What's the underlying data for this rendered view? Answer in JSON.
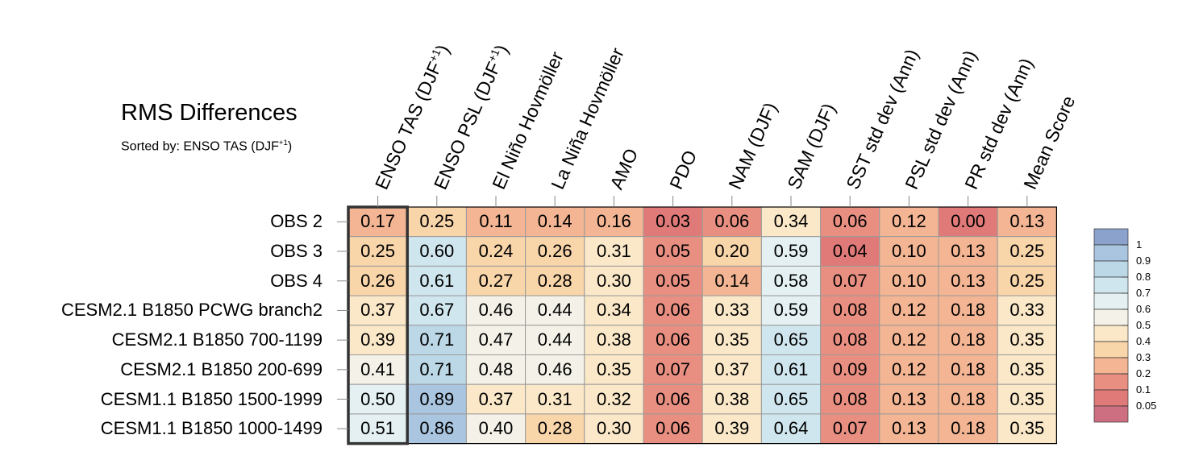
{
  "chart_data": {
    "type": "heatmap",
    "title": "RMS Differences",
    "subtitle": "Sorted by: ENSO TAS (DJF",
    "subtitle_sup": "+1",
    "subtitle_close": ")",
    "columns": [
      {
        "text": "ENSO TAS (DJF",
        "sup": "+1",
        "close": ")"
      },
      {
        "text": "ENSO PSL (DJF",
        "sup": "+1",
        "close": ")"
      },
      {
        "text": "El Niño Hovmöller"
      },
      {
        "text": "La Niña Hovmöller"
      },
      {
        "text": "AMO"
      },
      {
        "text": "PDO"
      },
      {
        "text": "NAM (DJF)"
      },
      {
        "text": "SAM (DJF)"
      },
      {
        "text": "SST std dev (Ann)"
      },
      {
        "text": "PSL std dev (Ann)"
      },
      {
        "text": "PR std dev (Ann)"
      },
      {
        "text": "Mean Score"
      }
    ],
    "rows": [
      "OBS 2",
      "OBS 3",
      "OBS 4",
      "CESM2.1 B1850 PCWG branch2",
      "CESM2.1 B1850 700-1199",
      "CESM2.1 B1850 200-699",
      "CESM1.1 B1850 1500-1999",
      "CESM1.1 B1850 1000-1499"
    ],
    "values": [
      [
        "0.17",
        "0.25",
        "0.11",
        "0.14",
        "0.16",
        "0.03",
        "0.06",
        "0.34",
        "0.06",
        "0.12",
        "0.00",
        "0.13"
      ],
      [
        "0.25",
        "0.60",
        "0.24",
        "0.26",
        "0.31",
        "0.05",
        "0.20",
        "0.59",
        "0.04",
        "0.10",
        "0.13",
        "0.25"
      ],
      [
        "0.26",
        "0.61",
        "0.27",
        "0.28",
        "0.30",
        "0.05",
        "0.14",
        "0.58",
        "0.07",
        "0.10",
        "0.13",
        "0.25"
      ],
      [
        "0.37",
        "0.67",
        "0.46",
        "0.44",
        "0.34",
        "0.06",
        "0.33",
        "0.59",
        "0.08",
        "0.12",
        "0.18",
        "0.33"
      ],
      [
        "0.39",
        "0.71",
        "0.47",
        "0.44",
        "0.38",
        "0.06",
        "0.35",
        "0.65",
        "0.08",
        "0.12",
        "0.18",
        "0.35"
      ],
      [
        "0.41",
        "0.71",
        "0.48",
        "0.46",
        "0.35",
        "0.07",
        "0.37",
        "0.61",
        "0.09",
        "0.12",
        "0.18",
        "0.35"
      ],
      [
        "0.50",
        "0.89",
        "0.37",
        "0.31",
        "0.32",
        "0.06",
        "0.38",
        "0.65",
        "0.08",
        "0.13",
        "0.18",
        "0.35"
      ],
      [
        "0.51",
        "0.86",
        "0.40",
        "0.28",
        "0.30",
        "0.06",
        "0.39",
        "0.64",
        "0.07",
        "0.13",
        "0.18",
        "0.35"
      ]
    ],
    "sorted_column": 0,
    "colorbar": {
      "levels": [
        "1",
        "0.9",
        "0.8",
        "0.7",
        "0.6",
        "0.5",
        "0.4",
        "0.3",
        "0.2",
        "0.1",
        "0.05"
      ],
      "bounds": [
        1.0,
        0.9,
        0.8,
        0.7,
        0.6,
        0.5,
        0.4,
        0.3,
        0.2,
        0.1,
        0.05,
        0.0
      ],
      "colors": [
        "#8ba2cd",
        "#a9c5df",
        "#bcd8e7",
        "#d0e6ee",
        "#e4f0f2",
        "#f4f2e8",
        "#fae8c8",
        "#f9d5aa",
        "#f3b593",
        "#e88f82",
        "#e07a79",
        "#cd6f80"
      ]
    }
  }
}
